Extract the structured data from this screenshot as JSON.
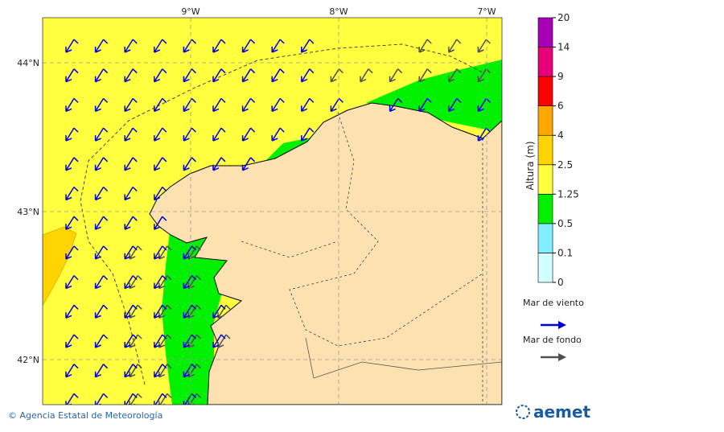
{
  "map": {
    "lon_labels": [
      "9°W",
      "8°W",
      "7°W"
    ],
    "lat_labels": [
      "44°N",
      "43°N",
      "42°N"
    ]
  },
  "colorbar": {
    "title": "Altura (m)",
    "levels": [
      0,
      0.1,
      0.5,
      1.25,
      2.5,
      4,
      6,
      9,
      14,
      20
    ],
    "colors": [
      "#d2ffff",
      "#80eeff",
      "#00f000",
      "#ffff40",
      "#ffd400",
      "#ffa800",
      "#ff0000",
      "#e8007a",
      "#a800b8"
    ]
  },
  "legend": [
    {
      "label": "Mar de viento",
      "color": "#0000dd"
    },
    {
      "label": "Mar de fondo",
      "color": "#505050"
    }
  ],
  "footer": {
    "credit": "© Agencia Estatal de Meteorología",
    "logo": "aemet"
  }
}
